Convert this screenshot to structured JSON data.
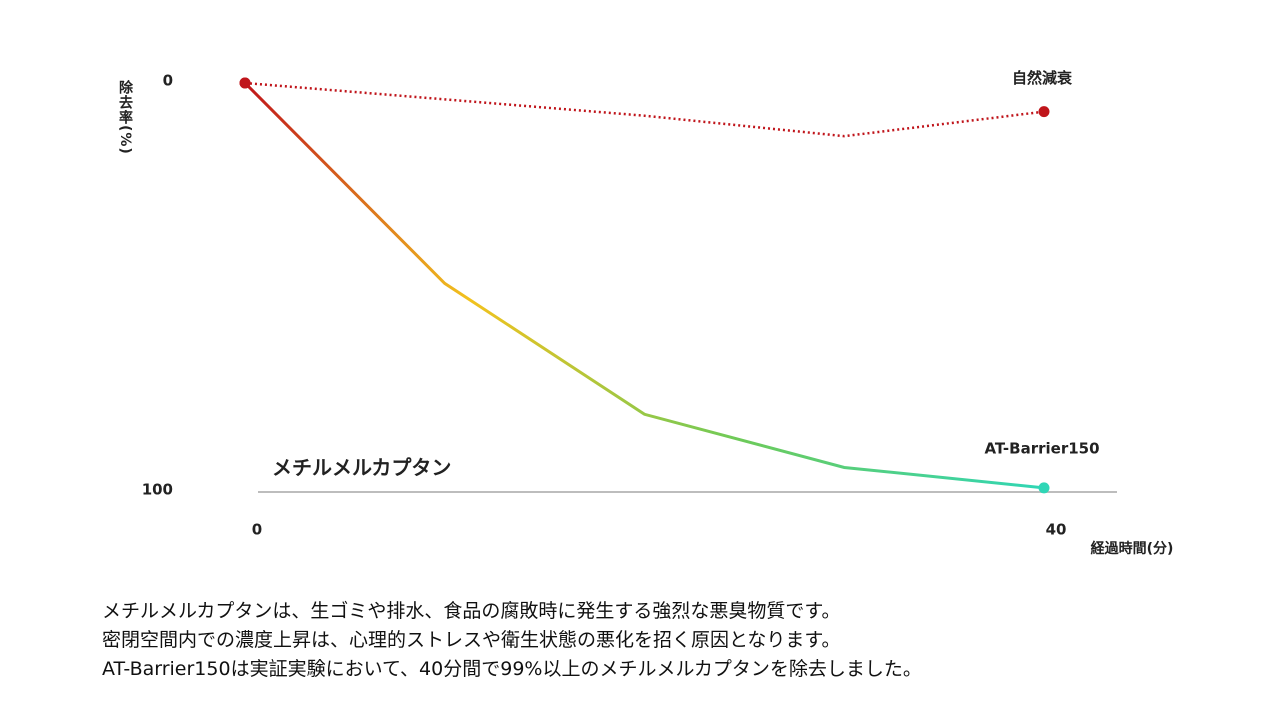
{
  "chart_data": {
    "type": "line",
    "y_axis_label": "除去率(%)",
    "x_axis_label": "経過時間(分)",
    "x": [
      0,
      10,
      20,
      30,
      40
    ],
    "xlim": [
      0,
      40
    ],
    "xticks": [
      0,
      40
    ],
    "ylim": [
      0,
      100
    ],
    "yticks": [
      0,
      100
    ],
    "y_reversed": true,
    "reference_line": {
      "value": 100,
      "label": "メチルメルカプタン",
      "color": "#bdbdbd"
    },
    "series": [
      {
        "name": "自然減衰",
        "color": "#c0151b",
        "style": "dotted",
        "values": [
          0,
          4,
          8,
          13,
          7
        ]
      },
      {
        "name": "AT-Barrier150",
        "color": "#2fd6b6",
        "gradient": [
          "#c0151b",
          "#f2c21e",
          "#6fca58",
          "#2fd6b6"
        ],
        "style": "solid",
        "values": [
          0,
          49,
          81,
          94,
          99
        ]
      }
    ]
  },
  "description": [
    "メチルメルカプタンは、生ゴミや排水、食品の腐敗時に発生する強烈な悪臭物質です。",
    "密閉空間内での濃度上昇は、心理的ストレスや衛生状態の悪化を招く原因となります。",
    "AT-Barrier150は実証実験において、40分間で99%以上のメチルメルカプタンを除去しました。"
  ]
}
